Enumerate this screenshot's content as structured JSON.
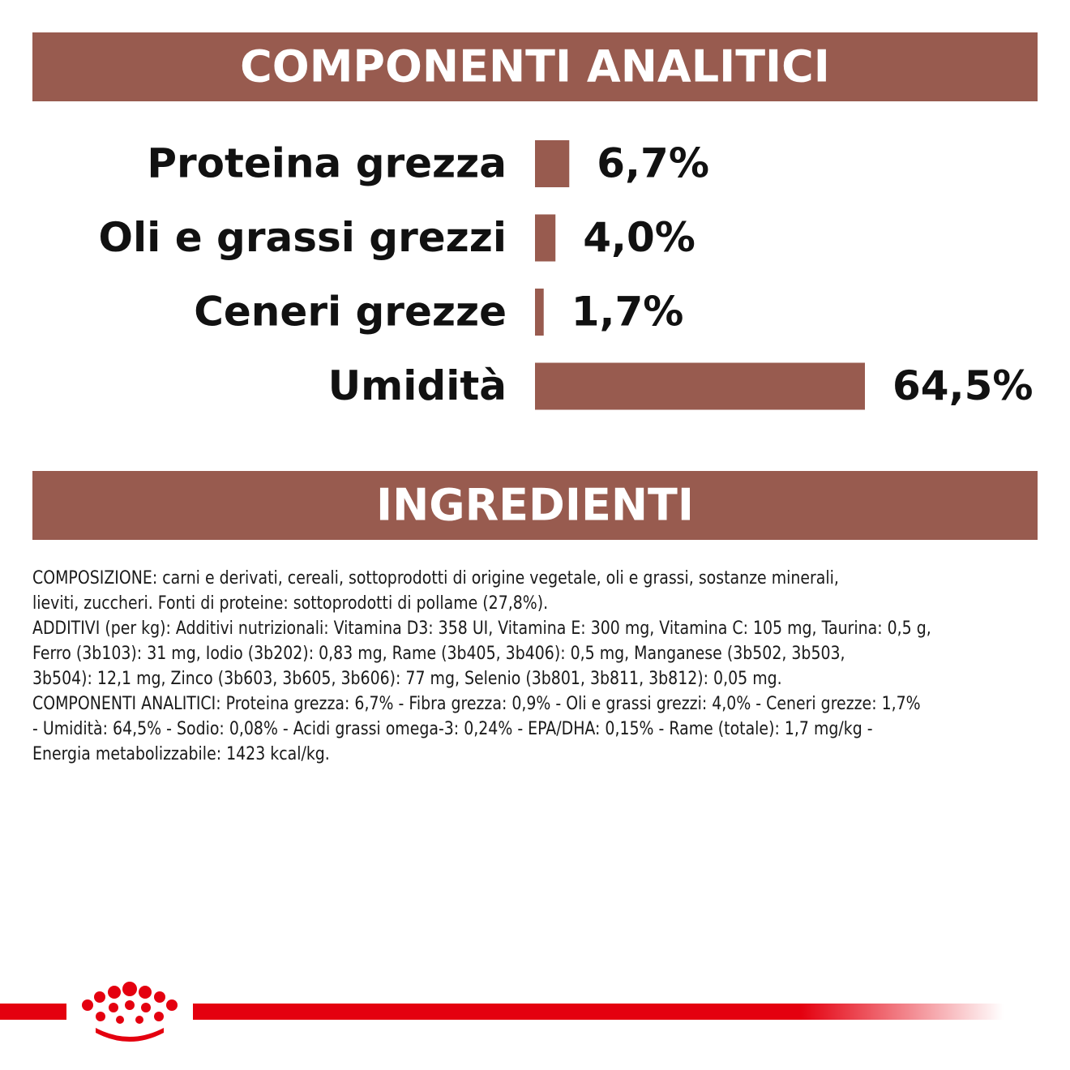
{
  "chart_data": {
    "type": "bar",
    "orientation": "horizontal",
    "title": "COMPONENTI ANALITICI",
    "categories": [
      "Proteina grezza",
      "Oli e grassi grezzi",
      "Ceneri grezze",
      "Umidità"
    ],
    "values": [
      6.7,
      4.0,
      1.7,
      64.5
    ],
    "value_labels": [
      "6,7%",
      "4,0%",
      "1,7%",
      "64,5%"
    ],
    "color": "#985b4f"
  },
  "ingredients": {
    "title": "INGREDIENTI",
    "lines": [
      "COMPOSIZIONE: carni e derivati, cereali, sottoprodotti di origine vegetale, oli e grassi, sostanze minerali,",
      "lieviti, zuccheri. Fonti di proteine: sottoprodotti di pollame (27,8%).",
      "ADDITIVI (per kg): Additivi nutrizionali: Vitamina D3: 358 UI, Vitamina E: 300 mg, Vitamina C: 105 mg, Taurina: 0,5 g,",
      "Ferro (3b103): 31 mg, Iodio (3b202): 0,83 mg, Rame (3b405, 3b406): 0,5 mg, Manganese (3b502, 3b503,",
      "3b504): 12,1 mg, Zinco (3b603, 3b605, 3b606): 77 mg, Selenio (3b801, 3b811, 3b812): 0,05 mg.",
      "COMPONENTI ANALITICI: Proteina grezza: 6,7% - Fibra grezza: 0,9% - Oli e grassi grezzi: 4,0% - Ceneri grezze: 1,7%",
      "- Umidità: 64,5% - Sodio: 0,08% - Acidi grassi omega-3: 0,24% - EPA/DHA: 0,15% - Rame (totale): 1,7 mg/kg -",
      "Energia metabolizzabile: 1423 kcal/kg."
    ]
  }
}
